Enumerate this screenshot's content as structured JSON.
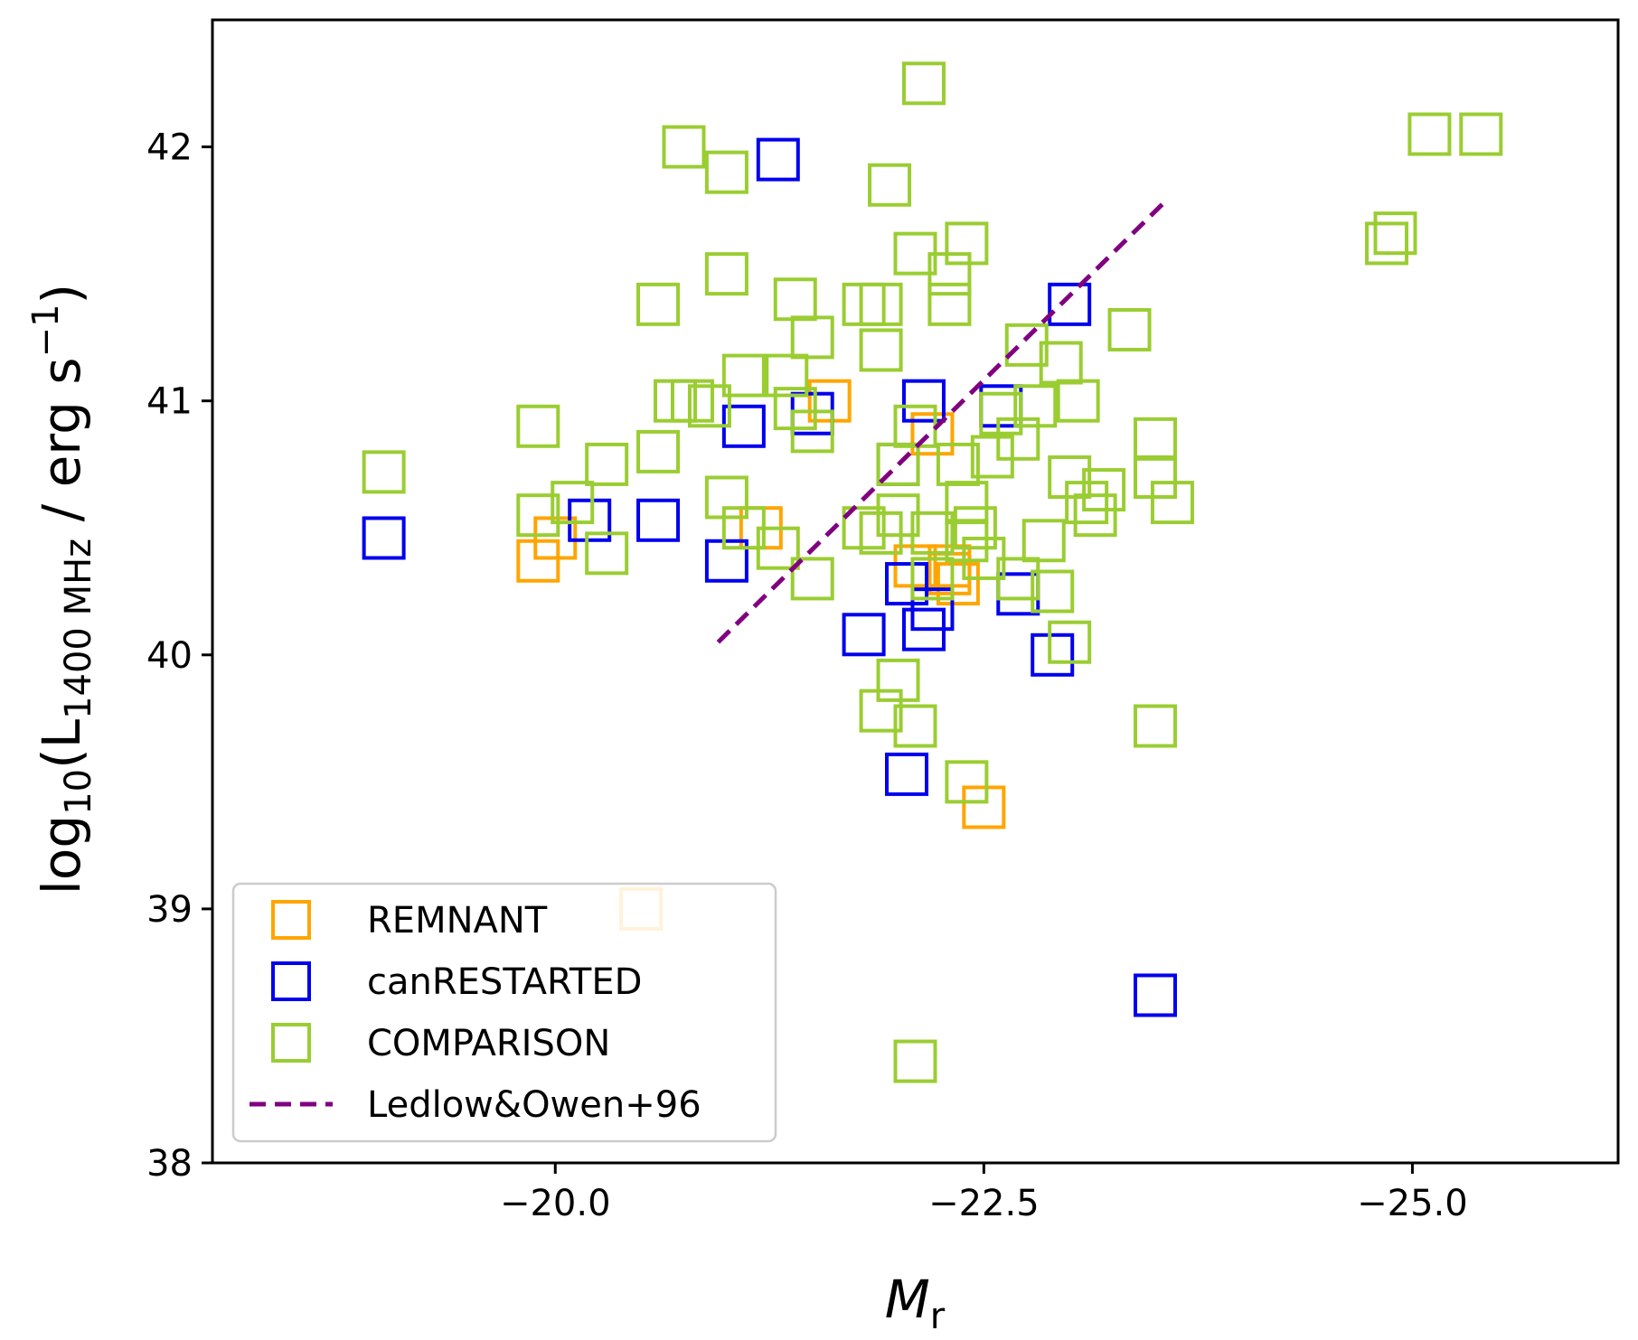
{
  "chart_data": {
    "type": "scatter",
    "xlabel": {
      "main": "M",
      "sub": "r"
    },
    "ylabel": {
      "pre": "log",
      "sub1": "10",
      "mid": "(L",
      "sub2": "1400 MHz",
      "post": " / erg s",
      "sup": "−1",
      "close": ")"
    },
    "xlim": [
      -18,
      -26.2
    ],
    "ylim": [
      38,
      42.5
    ],
    "x_ticks": [
      {
        "value": -20.0,
        "label": "−20.0"
      },
      {
        "value": -22.5,
        "label": "−22.5"
      },
      {
        "value": -25.0,
        "label": "−25.0"
      }
    ],
    "y_ticks": [
      {
        "value": 38,
        "label": "38"
      },
      {
        "value": 39,
        "label": "39"
      },
      {
        "value": 40,
        "label": "40"
      },
      {
        "value": 41,
        "label": "41"
      },
      {
        "value": 42,
        "label": "42"
      }
    ],
    "grid": false,
    "legend_position": "lower-left",
    "series": [
      {
        "name": "REMNANT",
        "marker": "open-square",
        "color": "#FFA500",
        "points": [
          [
            -19.9,
            40.37
          ],
          [
            -20.0,
            40.46
          ],
          [
            -21.2,
            40.5
          ],
          [
            -21.6,
            41.0
          ],
          [
            -22.1,
            40.35
          ],
          [
            -22.3,
            40.35
          ],
          [
            -22.3,
            40.32
          ],
          [
            -22.35,
            40.28
          ],
          [
            -22.2,
            40.87
          ],
          [
            -22.5,
            39.4
          ],
          [
            -20.5,
            39.0
          ]
        ]
      },
      {
        "name": "canRESTARTED",
        "marker": "open-square",
        "color": "#0000EE",
        "points": [
          [
            -19.0,
            40.46
          ],
          [
            -20.2,
            40.53
          ],
          [
            -20.6,
            40.53
          ],
          [
            -21.0,
            40.37
          ],
          [
            -21.1,
            40.9
          ],
          [
            -21.3,
            41.95
          ],
          [
            -21.5,
            40.95
          ],
          [
            -22.0,
            40.75
          ],
          [
            -22.15,
            41.0
          ],
          [
            -22.6,
            40.98
          ],
          [
            -22.7,
            40.24
          ],
          [
            -23.0,
            41.38
          ],
          [
            -22.05,
            40.28
          ],
          [
            -22.2,
            40.18
          ],
          [
            -22.15,
            40.1
          ],
          [
            -21.8,
            40.08
          ],
          [
            -22.9,
            40.0
          ],
          [
            -22.05,
            39.53
          ],
          [
            -23.5,
            38.66
          ]
        ]
      },
      {
        "name": "COMPARISON",
        "marker": "open-square",
        "color": "#9ACD32",
        "points": [
          [
            -19.0,
            40.72
          ],
          [
            -19.9,
            40.9
          ],
          [
            -19.9,
            40.55
          ],
          [
            -20.1,
            40.6
          ],
          [
            -20.3,
            40.4
          ],
          [
            -20.3,
            40.75
          ],
          [
            -20.6,
            40.8
          ],
          [
            -20.6,
            41.38
          ],
          [
            -20.7,
            41.0
          ],
          [
            -20.75,
            42.0
          ],
          [
            -20.8,
            41.0
          ],
          [
            -20.9,
            40.98
          ],
          [
            -21.0,
            41.9
          ],
          [
            -21.0,
            41.5
          ],
          [
            -21.0,
            40.62
          ],
          [
            -21.1,
            40.5
          ],
          [
            -21.1,
            41.1
          ],
          [
            -21.3,
            40.42
          ],
          [
            -21.35,
            41.1
          ],
          [
            -21.4,
            41.4
          ],
          [
            -21.4,
            40.97
          ],
          [
            -21.5,
            41.25
          ],
          [
            -21.5,
            40.88
          ],
          [
            -21.5,
            40.3
          ],
          [
            -21.8,
            41.38
          ],
          [
            -21.8,
            40.5
          ],
          [
            -21.9,
            41.38
          ],
          [
            -21.9,
            41.2
          ],
          [
            -21.9,
            40.48
          ],
          [
            -21.95,
            41.85
          ],
          [
            -22.0,
            40.55
          ],
          [
            -22.0,
            40.75
          ],
          [
            -22.1,
            41.58
          ],
          [
            -22.1,
            40.9
          ],
          [
            -22.15,
            42.25
          ],
          [
            -22.2,
            40.48
          ],
          [
            -22.2,
            40.3
          ],
          [
            -22.3,
            41.38
          ],
          [
            -22.3,
            41.5
          ],
          [
            -22.4,
            41.62
          ],
          [
            -22.35,
            40.75
          ],
          [
            -22.4,
            40.6
          ],
          [
            -22.4,
            40.45
          ],
          [
            -22.45,
            40.5
          ],
          [
            -22.5,
            40.38
          ],
          [
            -22.55,
            40.78
          ],
          [
            -22.6,
            40.95
          ],
          [
            -22.7,
            40.85
          ],
          [
            -22.7,
            40.3
          ],
          [
            -22.75,
            41.22
          ],
          [
            -22.8,
            40.98
          ],
          [
            -22.85,
            40.45
          ],
          [
            -22.9,
            40.25
          ],
          [
            -22.95,
            41.15
          ],
          [
            -23.0,
            40.7
          ],
          [
            -23.0,
            40.05
          ],
          [
            -23.05,
            41.0
          ],
          [
            -23.1,
            40.6
          ],
          [
            -23.15,
            40.55
          ],
          [
            -23.2,
            40.65
          ],
          [
            -23.35,
            41.28
          ],
          [
            -23.5,
            40.85
          ],
          [
            -23.5,
            40.7
          ],
          [
            -23.6,
            40.6
          ],
          [
            -23.5,
            39.72
          ],
          [
            -22.0,
            39.9
          ],
          [
            -21.9,
            39.78
          ],
          [
            -22.1,
            39.72
          ],
          [
            -22.4,
            39.5
          ],
          [
            -22.1,
            38.4
          ],
          [
            -24.85,
            41.62
          ],
          [
            -24.9,
            41.66
          ],
          [
            -25.1,
            42.05
          ],
          [
            -25.4,
            42.05
          ]
        ]
      },
      {
        "name": "Ledlow&Owen+96",
        "type": "line",
        "style": "dashed",
        "color": "#800080",
        "points": [
          [
            -20.95,
            40.05
          ],
          [
            -23.55,
            41.78
          ]
        ]
      }
    ]
  }
}
